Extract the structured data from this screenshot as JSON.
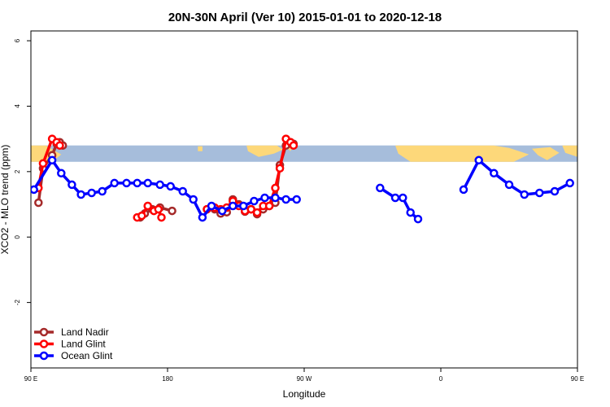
{
  "chart_data": {
    "type": "line",
    "title": "20N-30N April (Ver 10)   2015-01-01 to 2020-12-18",
    "xlabel": "Longitude",
    "ylabel": "XCO2 - MLO trend (ppm)",
    "xlim": [
      90,
      450
    ],
    "ylim": [
      -4,
      6.3
    ],
    "xticks": [
      {
        "value": 90,
        "label": "90 E"
      },
      {
        "value": 180,
        "label": "180"
      },
      {
        "value": 270,
        "label": "90 W"
      },
      {
        "value": 360,
        "label": "0"
      },
      {
        "value": 450,
        "label": "90 E"
      },
      {
        "value": 540,
        "label": "180"
      }
    ],
    "yticks": [
      {
        "value": -2,
        "label": "-2"
      },
      {
        "value": 0,
        "label": "0"
      },
      {
        "value": 2,
        "label": "2"
      },
      {
        "value": 4,
        "label": "4"
      },
      {
        "value": 6,
        "label": "6"
      }
    ],
    "map_band": {
      "y_bottom": 2.3,
      "y_top": 2.8,
      "ocean_color": "#a6bddb",
      "land_color": "#fdd87a"
    },
    "series": [
      {
        "name": "Land Nadir",
        "color": "#a52a2a",
        "segments": [
          [
            [
              95,
              1.05
            ],
            [
              98,
              2.1
            ],
            [
              104,
              2.5
            ],
            [
              107,
              2.85
            ],
            [
              109,
              2.9
            ],
            [
              111,
              2.8
            ]
          ],
          [
            [
              162,
              0.6
            ],
            [
              165,
              0.72
            ],
            [
              170,
              0.85
            ],
            [
              175,
              0.9
            ],
            [
              183,
              0.8
            ]
          ],
          [
            [
              206,
              0.85
            ],
            [
              211,
              0.85
            ],
            [
              215,
              0.72
            ],
            [
              219,
              0.76
            ],
            [
              223,
              1.15
            ],
            [
              227,
              1.0
            ],
            [
              231,
              0.78
            ],
            [
              235,
              0.85
            ],
            [
              239,
              0.7
            ],
            [
              243,
              0.85
            ],
            [
              247,
              0.95
            ],
            [
              251,
              1.05
            ],
            [
              254,
              2.2
            ],
            [
              258,
              2.8
            ],
            [
              261,
              2.9
            ],
            [
              263,
              2.85
            ]
          ]
        ]
      },
      {
        "name": "Land Glint",
        "color": "#ff0000",
        "segments": [
          [
            [
              95,
              1.5
            ],
            [
              98,
              2.25
            ],
            [
              104,
              3.0
            ],
            [
              107,
              2.9
            ],
            [
              109,
              2.8
            ]
          ],
          [
            [
              160,
              0.6
            ],
            [
              163,
              0.65
            ],
            [
              167,
              0.95
            ],
            [
              171,
              0.8
            ],
            [
              174,
              0.85
            ],
            [
              176,
              0.6
            ]
          ],
          [
            [
              206,
              0.85
            ],
            [
              211,
              0.9
            ],
            [
              215,
              0.85
            ],
            [
              219,
              0.9
            ],
            [
              223,
              1.1
            ],
            [
              227,
              0.95
            ],
            [
              231,
              0.8
            ],
            [
              235,
              0.85
            ],
            [
              239,
              0.75
            ],
            [
              243,
              0.95
            ],
            [
              247,
              0.95
            ],
            [
              251,
              1.5
            ],
            [
              254,
              2.1
            ],
            [
              258,
              3.0
            ],
            [
              261,
              2.9
            ],
            [
              263,
              2.8
            ]
          ]
        ]
      },
      {
        "name": "Ocean Glint",
        "color": "#0000ff",
        "segments": [
          [
            [
              92,
              1.45
            ],
            [
              104,
              2.35
            ],
            [
              110,
              1.95
            ],
            [
              117,
              1.6
            ],
            [
              123,
              1.3
            ],
            [
              130,
              1.35
            ],
            [
              137,
              1.4
            ],
            [
              145,
              1.65
            ],
            [
              153,
              1.65
            ],
            [
              160,
              1.65
            ],
            [
              167,
              1.65
            ],
            [
              175,
              1.6
            ],
            [
              182,
              1.55
            ],
            [
              190,
              1.4
            ],
            [
              197,
              1.15
            ],
            [
              203,
              0.6
            ],
            [
              209,
              0.95
            ],
            [
              216,
              0.8
            ],
            [
              223,
              0.95
            ],
            [
              230,
              0.95
            ],
            [
              237,
              1.1
            ],
            [
              244,
              1.2
            ],
            [
              251,
              1.2
            ],
            [
              258,
              1.15
            ],
            [
              265,
              1.15
            ]
          ],
          [
            [
              320,
              1.5
            ],
            [
              330,
              1.2
            ],
            [
              335,
              1.2
            ],
            [
              340,
              0.75
            ],
            [
              345,
              0.55
            ]
          ],
          [
            [
              375,
              1.45
            ],
            [
              385,
              2.35
            ],
            [
              395,
              1.95
            ],
            [
              405,
              1.6
            ],
            [
              415,
              1.3
            ],
            [
              425,
              1.35
            ],
            [
              435,
              1.4
            ],
            [
              445,
              1.65
            ]
          ]
        ]
      }
    ],
    "legend": {
      "position": "bottom-left",
      "entries": [
        "Land Nadir",
        "Land Glint",
        "Ocean Glint"
      ]
    }
  }
}
